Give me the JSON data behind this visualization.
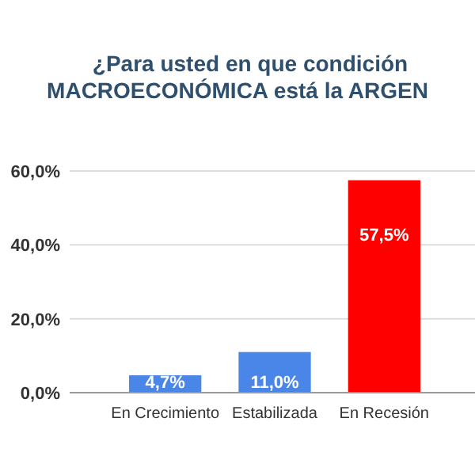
{
  "chart_data": {
    "type": "bar",
    "title": "¿Para usted en que condición",
    "subtitle": "MACROECONÓMICA está la ARGEN",
    "categories": [
      "En Crecimiento",
      "Estabilizada",
      "En Recesión"
    ],
    "values": [
      4.7,
      11.0,
      57.5
    ],
    "colors": [
      "#4a86e8",
      "#4a86e8",
      "#ff0000"
    ],
    "value_labels": [
      "4,7%",
      "11,0%",
      "57,5%"
    ],
    "ylim": [
      0,
      60
    ],
    "yticks": [
      {
        "value": 0,
        "label": "0,0%"
      },
      {
        "value": 20,
        "label": "20,0%"
      },
      {
        "value": 40,
        "label": "40,0%"
      },
      {
        "value": 60,
        "label": "60,0%"
      }
    ],
    "grid": "y"
  }
}
